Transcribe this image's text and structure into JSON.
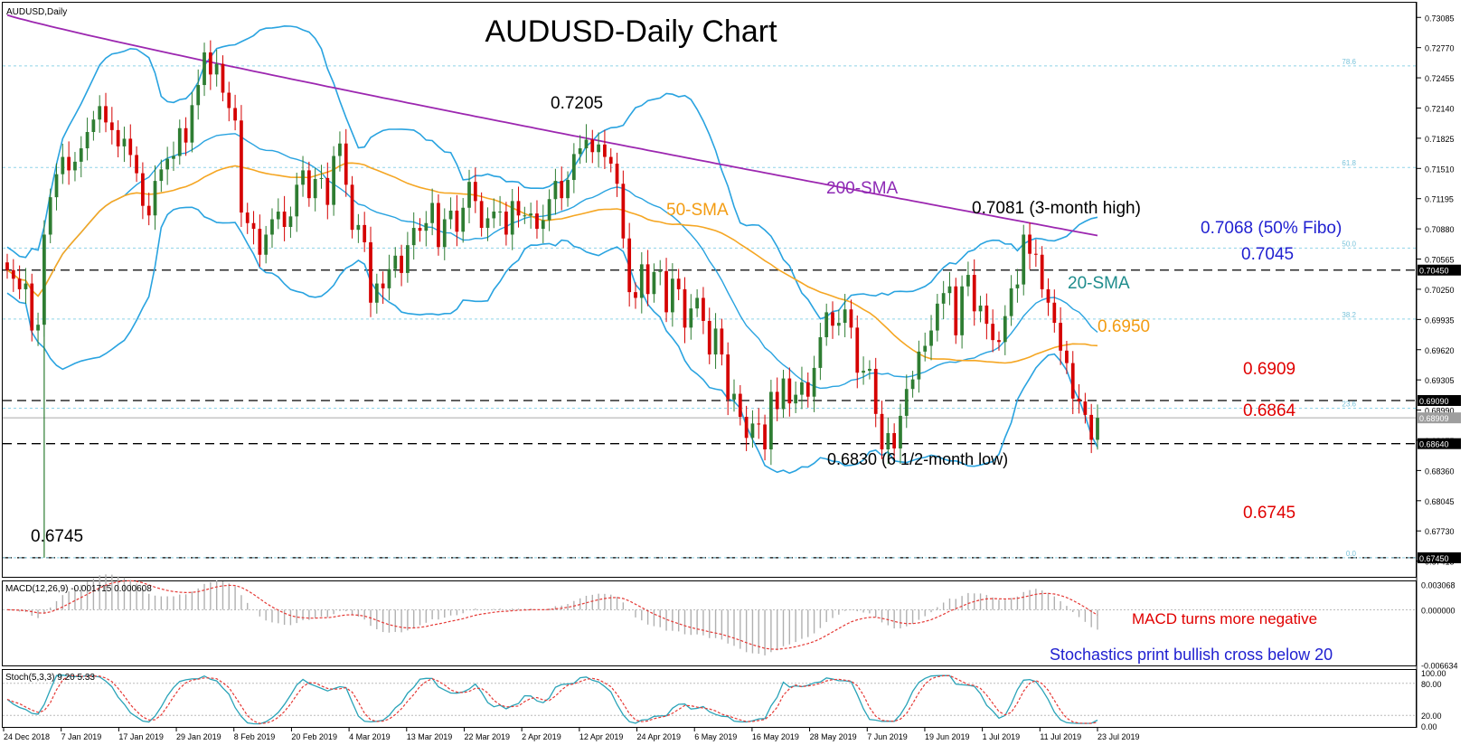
{
  "symbol_label": "AUDUSD,Daily",
  "chart_title": "AUDUSD-Daily Chart",
  "colors": {
    "bull": "#2e7d32",
    "bear": "#d50000",
    "sma200": "#9c27b0",
    "sma50": "#f5a623",
    "bollinger": "#29a3e0",
    "annot_red": "#e00000",
    "annot_blue": "#1f1fd0",
    "annot_teal": "#1e8c8c",
    "annot_orange": "#f39c12",
    "annot_purple": "#8e2ab5"
  },
  "chart_data": [
    {
      "type": "candlestick",
      "title": "AUDUSD-Daily Chart",
      "price_axis_ticks": [
        "0.73085",
        "0.72770",
        "0.72455",
        "0.72140",
        "0.71825",
        "0.71510",
        "0.71195",
        "0.70880",
        "0.70565",
        "0.70250",
        "0.69935",
        "0.69620",
        "0.69305",
        "0.68990",
        "0.68675",
        "0.68360",
        "0.68045",
        "0.67730",
        "0.67415"
      ],
      "ylim": [
        0.6727,
        0.7321
      ],
      "date_ticks": [
        "24 Dec 2018",
        "7 Jan 2019",
        "17 Jan 2019",
        "29 Jan 2019",
        "8 Feb 2019",
        "20 Feb 2019",
        "4 Mar 2019",
        "13 Mar 2019",
        "22 Mar 2019",
        "2 Apr 2019",
        "12 Apr 2019",
        "24 Apr 2019",
        "6 May 2019",
        "16 May 2019",
        "28 May 2019",
        "7 Jun 2019",
        "19 Jun 2019",
        "1 Jul 2019",
        "11 Jul 2019",
        "23 Jul 2019"
      ],
      "horizontal_levels": [
        {
          "value": 0.7045,
          "label": "0.7045",
          "tag": "0.70450"
        },
        {
          "value": 0.6909,
          "label": "0.6909",
          "tag": "0.69090"
        },
        {
          "value": 0.6864,
          "label": "0.6864",
          "tag": "0.68640"
        },
        {
          "value": 0.6745,
          "label": "0.6745",
          "tag": "0.67450"
        }
      ],
      "fibonacci_levels": [
        {
          "label": "78.6",
          "value": 0.7258
        },
        {
          "label": "61.8",
          "value": 0.7152
        },
        {
          "label": "50.0",
          "value": 0.7068
        },
        {
          "label": "38.2",
          "value": 0.6994
        },
        {
          "label": "23.6",
          "value": 0.6901
        },
        {
          "label": "0.0",
          "value": 0.6745
        }
      ],
      "current_price": {
        "value": 0.68909,
        "tag": "0.68909"
      },
      "ohlc_series_close": [
        0.7045,
        0.7036,
        0.7025,
        0.7031,
        0.6982,
        0.6988,
        0.7082,
        0.7121,
        0.7145,
        0.7163,
        0.7149,
        0.7158,
        0.7172,
        0.7189,
        0.7202,
        0.7216,
        0.7199,
        0.7191,
        0.7174,
        0.7182,
        0.7165,
        0.7146,
        0.7112,
        0.7102,
        0.7138,
        0.715,
        0.7161,
        0.7164,
        0.7193,
        0.7178,
        0.7217,
        0.7238,
        0.7272,
        0.7249,
        0.726,
        0.723,
        0.7214,
        0.7201,
        0.7105,
        0.7094,
        0.7088,
        0.7061,
        0.7082,
        0.7098,
        0.7106,
        0.709,
        0.7101,
        0.7134,
        0.7149,
        0.712,
        0.714,
        0.7141,
        0.7113,
        0.7164,
        0.7177,
        0.7134,
        0.7087,
        0.7092,
        0.7074,
        0.7011,
        0.7031,
        0.7026,
        0.7046,
        0.706,
        0.7042,
        0.7071,
        0.7089,
        0.7086,
        0.7094,
        0.7115,
        0.7069,
        0.7098,
        0.7107,
        0.7085,
        0.711,
        0.7137,
        0.7117,
        0.7089,
        0.7099,
        0.7106,
        0.7106,
        0.7082,
        0.7117,
        0.7102,
        0.7102,
        0.7104,
        0.7088,
        0.7097,
        0.7119,
        0.7138,
        0.712,
        0.7139,
        0.7166,
        0.7172,
        0.7181,
        0.7168,
        0.7176,
        0.7163,
        0.7156,
        0.7135,
        0.7078,
        0.7022,
        0.7016,
        0.7051,
        0.702,
        0.7043,
        0.7044,
        0.7001,
        0.7036,
        0.7025,
        0.6985,
        0.7005,
        0.7016,
        0.6992,
        0.6957,
        0.6984,
        0.6957,
        0.691,
        0.6916,
        0.6892,
        0.687,
        0.6885,
        0.6884,
        0.6858,
        0.6918,
        0.69,
        0.6932,
        0.6906,
        0.6915,
        0.6928,
        0.6913,
        0.6943,
        0.6975,
        0.7001,
        0.6987,
        0.699,
        0.7004,
        0.6985,
        0.6938,
        0.694,
        0.6942,
        0.6895,
        0.6858,
        0.6875,
        0.6859,
        0.6893,
        0.6921,
        0.6931,
        0.696,
        0.6966,
        0.6982,
        0.701,
        0.7021,
        0.7028,
        0.6977,
        0.7028,
        0.704,
        0.7002,
        0.7008,
        0.6989,
        0.6972,
        0.697,
        0.6997,
        0.7026,
        0.703,
        0.7082,
        0.7062,
        0.7061,
        0.7025,
        0.7011,
        0.699,
        0.6961,
        0.6948,
        0.6911,
        0.6908,
        0.6894,
        0.6868,
        0.6891
      ]
    },
    {
      "type": "line",
      "title": "MACD(12,26,9) -0.001715 0.000608",
      "axis_ticks": [
        "0.003068",
        "0.000000",
        "-0.006634"
      ],
      "ylim": [
        -0.0066,
        0.0031
      ]
    },
    {
      "type": "line",
      "title": "Stoch(5,3,3) 9.20 5.33",
      "axis_ticks": [
        "100.00",
        "80.00",
        "20.00",
        "0.00"
      ],
      "ylim": [
        0,
        100
      ]
    }
  ],
  "annotations": {
    "low_start": "0.6745",
    "high_0_7205": "0.7205",
    "sma200": "200-SMA",
    "sma50": "50-SMA",
    "sma20": "20-SMA",
    "three_month_high": "0.7081 (3-month high)",
    "fibo50": "0.7068 (50% Fibo)",
    "level_7045": "0.7045",
    "level_6950": "0.6950",
    "level_6909": "0.6909",
    "level_6864": "0.6864",
    "level_6745": "0.6745",
    "six_month_low": "0.6830 (6 1/2-month low)",
    "macd_note": "MACD turns more negative",
    "stoch_note": "Stochastics print bullish cross below 20"
  }
}
